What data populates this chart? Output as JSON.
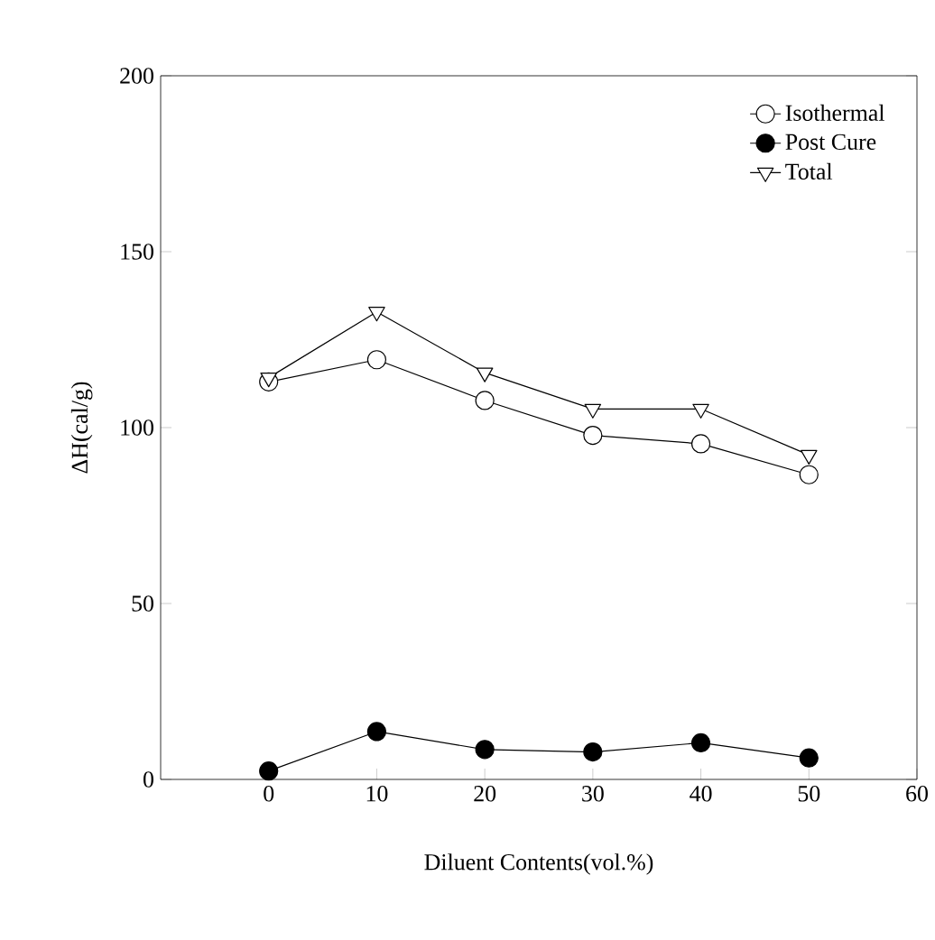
{
  "chart_data": {
    "type": "line",
    "xlabel": "Diluent Contents(vol.%)",
    "ylabel": "ΔH(cal/g)",
    "x": [
      0,
      10,
      20,
      30,
      40,
      50
    ],
    "series": [
      {
        "name": "Isothermal",
        "color": "#ffffff",
        "marker": "circle",
        "values": [
          113,
          119.3,
          107.7,
          97.8,
          95.4,
          86.6
        ]
      },
      {
        "name": "Post Cure",
        "color": "#000000",
        "marker": "circle",
        "values": [
          2.4,
          13.6,
          8.5,
          7.8,
          10.4,
          6.1
        ]
      },
      {
        "name": "Total",
        "color": "#ffffff",
        "marker": "triangle",
        "values": [
          114.2,
          132.9,
          115.6,
          105.3,
          105.3,
          92.2
        ]
      }
    ],
    "xlim": [
      -10,
      60
    ],
    "xticks": [
      0,
      10,
      20,
      30,
      40,
      50,
      60
    ],
    "ylim": [
      0,
      200
    ],
    "yticks": [
      0,
      50,
      100,
      150,
      200
    ],
    "grid": false,
    "legend": "top right",
    "line_style": "solid"
  }
}
